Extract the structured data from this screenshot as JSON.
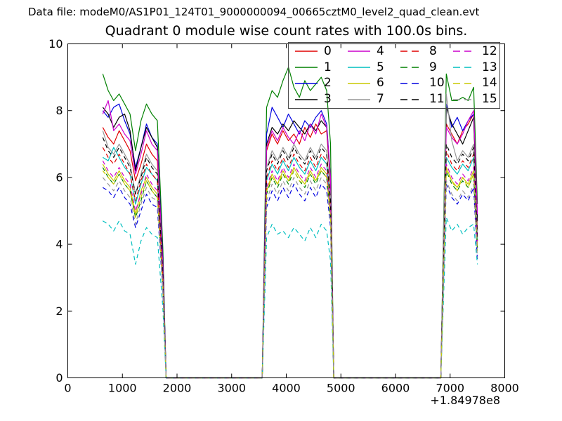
{
  "header": {
    "datafile": "Data file: modeM0/AS1P01_124T01_9000000094_00665cztM0_level2_quad_clean.evt"
  },
  "chart_data": {
    "type": "line",
    "title": "Quadrant 0 module wise count rates with 100.0s bins.",
    "xlabel": "",
    "ylabel": "",
    "xlim": [
      0,
      8000
    ],
    "ylim": [
      0,
      10
    ],
    "x_ticks": [
      0,
      1000,
      2000,
      3000,
      4000,
      5000,
      6000,
      7000,
      8000
    ],
    "y_ticks": [
      0,
      2,
      4,
      6,
      8,
      10
    ],
    "x_offset_text": "+1.84978e8",
    "grid": false,
    "legend": {
      "location": "upper right",
      "columns": 4
    },
    "frame_color": "#000000",
    "x": [
      640,
      740,
      840,
      940,
      1040,
      1140,
      1240,
      1340,
      1440,
      1540,
      1640,
      1740,
      1800,
      3560,
      3640,
      3740,
      3840,
      3940,
      4040,
      4140,
      4240,
      4340,
      4440,
      4540,
      4640,
      4740,
      4810,
      4870,
      6830,
      6930,
      7030,
      7130,
      7230,
      7330,
      7430,
      7500
    ],
    "series": [
      {
        "name": "0",
        "color": "#e00000",
        "linestyle": "solid",
        "values": [
          7.5,
          7.2,
          7.0,
          7.4,
          7.1,
          6.8,
          5.9,
          6.4,
          7.0,
          6.7,
          6.5,
          3.3,
          0,
          0,
          6.8,
          7.3,
          7.0,
          7.4,
          7.1,
          7.3,
          7.0,
          7.5,
          7.2,
          7.6,
          7.3,
          7.4,
          5.8,
          0,
          0,
          7.6,
          7.3,
          7.0,
          7.4,
          7.6,
          7.9,
          4.4
        ]
      },
      {
        "name": "1",
        "color": "#008000",
        "linestyle": "solid",
        "values": [
          9.1,
          8.6,
          8.3,
          8.5,
          8.2,
          7.9,
          6.8,
          7.7,
          8.2,
          7.9,
          7.7,
          3.9,
          0,
          0,
          8.1,
          8.6,
          8.4,
          8.9,
          9.3,
          8.7,
          8.4,
          8.9,
          8.6,
          8.8,
          9.0,
          8.6,
          7.0,
          0,
          0,
          9.1,
          8.3,
          8.3,
          8.4,
          8.3,
          8.7,
          5.2
        ]
      },
      {
        "name": "2",
        "color": "#0000e0",
        "linestyle": "solid",
        "values": [
          8.0,
          7.8,
          8.1,
          8.2,
          7.7,
          7.3,
          6.3,
          6.9,
          7.6,
          7.2,
          7.0,
          3.6,
          0,
          0,
          7.3,
          8.1,
          7.8,
          7.5,
          7.9,
          7.6,
          7.3,
          7.7,
          7.5,
          7.8,
          8.0,
          7.6,
          6.0,
          0,
          0,
          8.2,
          7.5,
          7.8,
          7.4,
          7.7,
          7.9,
          4.8
        ]
      },
      {
        "name": "3",
        "color": "#000000",
        "linestyle": "solid",
        "values": [
          8.1,
          7.9,
          7.5,
          7.8,
          7.9,
          7.4,
          6.2,
          6.9,
          7.5,
          7.2,
          6.9,
          3.5,
          0,
          0,
          7.0,
          7.5,
          7.3,
          7.6,
          7.4,
          7.7,
          7.5,
          7.3,
          7.6,
          7.4,
          7.7,
          7.5,
          5.9,
          0,
          0,
          8.1,
          7.6,
          7.3,
          7.0,
          7.4,
          7.8,
          4.7
        ]
      },
      {
        "name": "4",
        "color": "#cc00cc",
        "linestyle": "solid",
        "values": [
          7.9,
          8.3,
          7.4,
          7.6,
          7.3,
          7.1,
          6.1,
          6.7,
          7.4,
          7.0,
          6.8,
          3.4,
          0,
          0,
          6.9,
          7.4,
          7.1,
          7.5,
          7.2,
          7.0,
          7.4,
          7.1,
          7.6,
          7.3,
          7.9,
          7.5,
          6.0,
          0,
          0,
          7.5,
          7.2,
          7.0,
          7.3,
          7.7,
          8.0,
          4.9
        ]
      },
      {
        "name": "5",
        "color": "#00bfbf",
        "linestyle": "solid",
        "values": [
          6.6,
          6.5,
          6.9,
          6.6,
          6.3,
          6.1,
          5.2,
          5.8,
          6.3,
          6.1,
          5.9,
          3.0,
          0,
          0,
          5.9,
          6.4,
          6.1,
          6.5,
          6.2,
          6.6,
          6.3,
          6.1,
          6.5,
          6.2,
          6.6,
          6.4,
          5.1,
          0,
          0,
          6.6,
          6.3,
          6.1,
          6.4,
          6.2,
          6.6,
          4.1
        ]
      },
      {
        "name": "6",
        "color": "#c8c800",
        "linestyle": "solid",
        "values": [
          6.4,
          6.1,
          5.9,
          6.2,
          5.9,
          5.7,
          4.9,
          5.6,
          6.0,
          5.7,
          5.5,
          2.8,
          0,
          0,
          5.6,
          6.1,
          5.8,
          6.2,
          5.9,
          6.3,
          6.0,
          5.8,
          6.2,
          5.9,
          6.3,
          6.1,
          4.9,
          0,
          0,
          6.3,
          5.9,
          5.7,
          6.0,
          5.8,
          6.2,
          3.9
        ]
      },
      {
        "name": "7",
        "color": "#969696",
        "linestyle": "solid",
        "values": [
          7.4,
          6.9,
          6.7,
          7.0,
          6.7,
          6.4,
          5.5,
          6.1,
          6.7,
          6.4,
          6.2,
          3.1,
          0,
          0,
          6.3,
          6.8,
          6.5,
          6.9,
          6.6,
          7.0,
          6.7,
          6.5,
          6.9,
          6.6,
          7.0,
          6.8,
          5.4,
          0,
          0,
          8.5,
          7.1,
          6.5,
          6.8,
          6.6,
          7.0,
          4.3
        ]
      },
      {
        "name": "8",
        "color": "#e00000",
        "linestyle": "dashed",
        "values": [
          6.9,
          6.6,
          6.4,
          6.7,
          6.4,
          6.1,
          5.3,
          5.9,
          6.4,
          6.1,
          5.9,
          3.0,
          0,
          0,
          6.0,
          6.5,
          6.2,
          6.6,
          6.3,
          6.7,
          6.4,
          6.2,
          6.6,
          6.3,
          6.7,
          6.5,
          5.2,
          0,
          0,
          6.8,
          6.4,
          6.2,
          6.5,
          6.3,
          6.7,
          4.1
        ]
      },
      {
        "name": "9",
        "color": "#008000",
        "linestyle": "dashed",
        "values": [
          6.3,
          6.0,
          5.8,
          6.1,
          5.8,
          5.6,
          4.8,
          5.3,
          5.9,
          5.6,
          5.4,
          2.7,
          0,
          0,
          5.5,
          6.0,
          5.7,
          6.1,
          5.8,
          6.2,
          5.9,
          5.7,
          6.1,
          5.8,
          6.2,
          6.0,
          4.8,
          0,
          0,
          6.2,
          5.8,
          5.6,
          5.9,
          5.7,
          6.1,
          3.8
        ]
      },
      {
        "name": "10",
        "color": "#0000e0",
        "linestyle": "dashed",
        "values": [
          5.7,
          5.6,
          5.4,
          5.7,
          5.4,
          5.2,
          4.5,
          5.0,
          5.5,
          5.2,
          5.1,
          2.6,
          0,
          0,
          5.1,
          5.6,
          5.3,
          5.7,
          5.4,
          5.8,
          5.5,
          5.3,
          5.7,
          5.4,
          5.8,
          5.6,
          4.5,
          0,
          0,
          5.8,
          5.4,
          5.2,
          5.5,
          5.3,
          5.7,
          3.5
        ]
      },
      {
        "name": "11",
        "color": "#000000",
        "linestyle": "dashed",
        "values": [
          7.2,
          6.8,
          6.6,
          6.9,
          6.6,
          6.3,
          5.5,
          6.0,
          6.6,
          6.3,
          6.1,
          3.1,
          0,
          0,
          6.2,
          6.7,
          6.4,
          6.8,
          6.5,
          6.9,
          6.6,
          6.4,
          6.8,
          6.5,
          6.9,
          6.7,
          5.3,
          0,
          0,
          7.0,
          6.6,
          6.4,
          6.7,
          6.5,
          6.9,
          4.2
        ]
      },
      {
        "name": "12",
        "color": "#cc00cc",
        "linestyle": "dashed",
        "values": [
          6.5,
          6.2,
          6.0,
          6.3,
          6.0,
          5.8,
          5.0,
          5.5,
          6.1,
          5.8,
          5.6,
          2.8,
          0,
          0,
          5.7,
          6.2,
          5.9,
          6.3,
          6.0,
          6.4,
          6.1,
          5.9,
          6.3,
          6.0,
          6.4,
          6.2,
          5.0,
          0,
          0,
          6.4,
          6.0,
          5.8,
          6.1,
          5.9,
          6.3,
          3.9
        ]
      },
      {
        "name": "13",
        "color": "#00bfbf",
        "linestyle": "dashed",
        "values": [
          4.7,
          4.6,
          4.4,
          4.7,
          4.4,
          4.3,
          3.4,
          4.1,
          4.5,
          4.3,
          4.2,
          2.1,
          0,
          0,
          4.2,
          4.6,
          4.3,
          4.4,
          4.2,
          4.5,
          4.3,
          4.1,
          4.5,
          4.2,
          4.6,
          4.4,
          3.5,
          0,
          0,
          4.8,
          4.4,
          4.6,
          4.3,
          4.5,
          4.6,
          3.4
        ]
      },
      {
        "name": "14",
        "color": "#c8c800",
        "linestyle": "dashed",
        "values": [
          6.2,
          6.0,
          5.8,
          6.1,
          5.8,
          5.6,
          4.8,
          5.4,
          5.9,
          5.6,
          5.4,
          2.7,
          0,
          0,
          5.6,
          6.0,
          5.8,
          6.1,
          5.9,
          6.2,
          5.9,
          5.8,
          6.1,
          5.9,
          6.2,
          6.0,
          4.8,
          0,
          0,
          6.2,
          5.9,
          5.6,
          6.0,
          5.7,
          6.1,
          3.8
        ]
      },
      {
        "name": "15",
        "color": "#969696",
        "linestyle": "dashed",
        "values": [
          6.0,
          5.8,
          5.6,
          5.9,
          5.6,
          5.4,
          4.6,
          5.2,
          5.7,
          5.4,
          5.3,
          2.7,
          0,
          0,
          5.3,
          5.8,
          5.5,
          5.9,
          5.6,
          6.0,
          5.7,
          5.5,
          5.9,
          5.6,
          6.0,
          5.8,
          4.6,
          0,
          0,
          5.9,
          5.5,
          5.3,
          5.6,
          5.4,
          5.8,
          3.6
        ]
      }
    ]
  }
}
